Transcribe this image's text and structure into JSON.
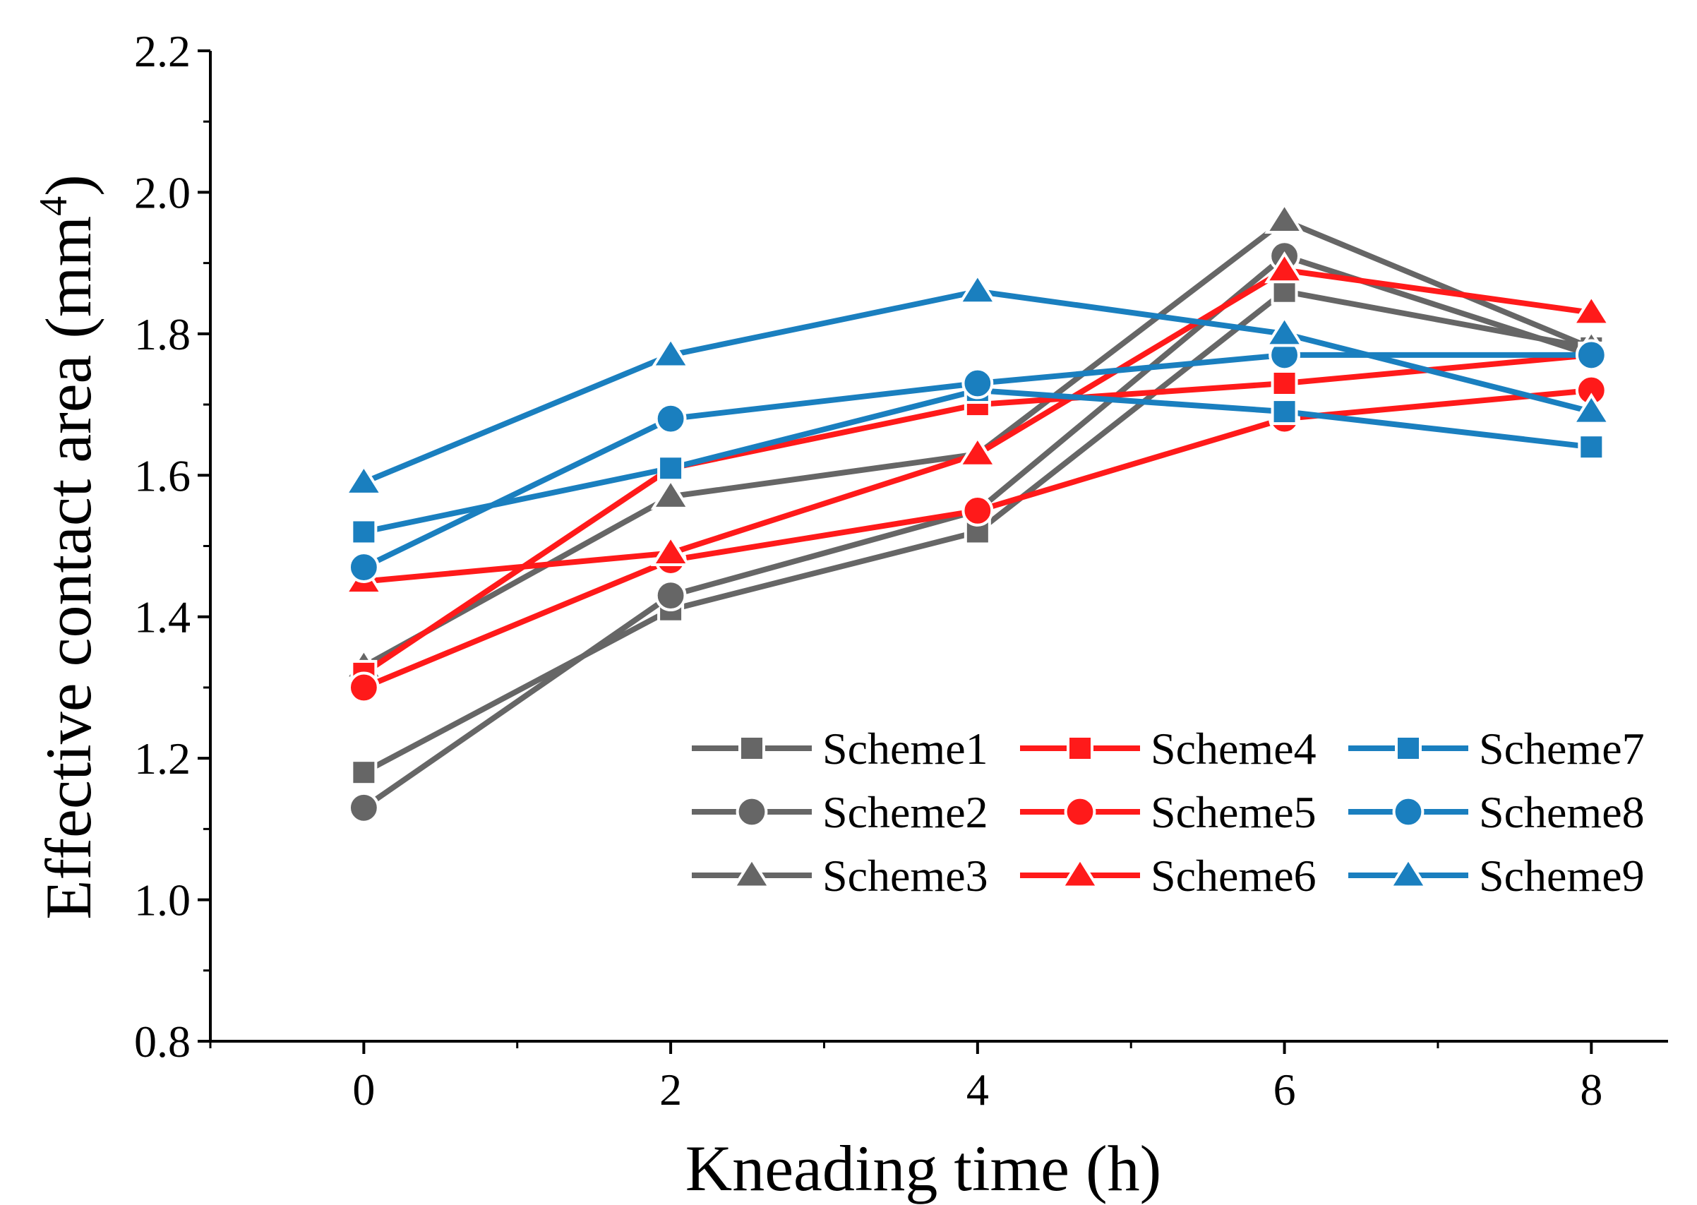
{
  "chart_data": {
    "type": "line",
    "xlabel": "Kneading time (h)",
    "ylabel": "Effective contact area (mm",
    "ylabel_sup": "4",
    "ylabel_end": ")",
    "xlim": [
      -1,
      8.5
    ],
    "ylim": [
      0.8,
      2.2
    ],
    "x_ticks": [
      0,
      2,
      4,
      6,
      8
    ],
    "x_tick_labels": [
      "0",
      "2",
      "4",
      "6",
      "8"
    ],
    "y_ticks": [
      0.8,
      1.0,
      1.2,
      1.4,
      1.6,
      1.8,
      2.0,
      2.2
    ],
    "y_tick_labels": [
      "0.8",
      "1.0",
      "1.2",
      "1.4",
      "1.6",
      "1.8",
      "2.0",
      "2.2"
    ],
    "x": [
      0,
      2,
      4,
      6,
      8
    ],
    "legend_position": "bottom-right",
    "legend_columns": 3,
    "series": [
      {
        "name": "Scheme1",
        "color": "#666666",
        "marker": "square",
        "values": [
          1.18,
          1.41,
          1.52,
          1.86,
          1.78
        ]
      },
      {
        "name": "Scheme2",
        "color": "#666666",
        "marker": "circle",
        "values": [
          1.13,
          1.43,
          1.55,
          1.91,
          1.77
        ]
      },
      {
        "name": "Scheme3",
        "color": "#666666",
        "marker": "triangle",
        "values": [
          1.33,
          1.57,
          1.63,
          1.96,
          1.78
        ]
      },
      {
        "name": "Scheme4",
        "color": "#ff1a1a",
        "marker": "square",
        "values": [
          1.32,
          1.61,
          1.7,
          1.73,
          1.77
        ]
      },
      {
        "name": "Scheme5",
        "color": "#ff1a1a",
        "marker": "circle",
        "values": [
          1.3,
          1.48,
          1.55,
          1.68,
          1.72
        ]
      },
      {
        "name": "Scheme6",
        "color": "#ff1a1a",
        "marker": "triangle",
        "values": [
          1.45,
          1.49,
          1.63,
          1.89,
          1.83
        ]
      },
      {
        "name": "Scheme7",
        "color": "#1a7fbf",
        "marker": "square",
        "values": [
          1.52,
          1.61,
          1.72,
          1.69,
          1.64
        ]
      },
      {
        "name": "Scheme8",
        "color": "#1a7fbf",
        "marker": "circle",
        "values": [
          1.47,
          1.68,
          1.73,
          1.77,
          1.77
        ]
      },
      {
        "name": "Scheme9",
        "color": "#1a7fbf",
        "marker": "triangle",
        "values": [
          1.59,
          1.77,
          1.86,
          1.8,
          1.69
        ]
      }
    ]
  }
}
